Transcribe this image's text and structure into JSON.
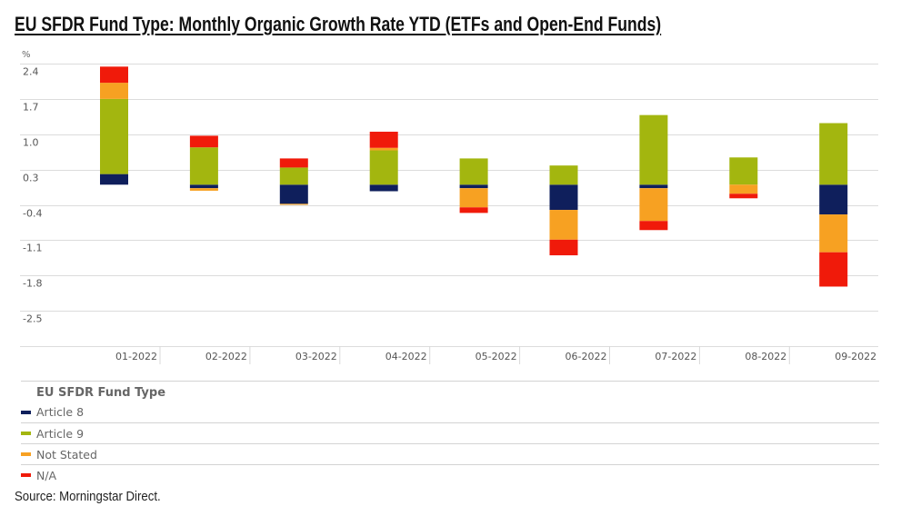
{
  "title": "EU SFDR Fund Type: Monthly Organic Growth Rate YTD (ETFs and Open-End Funds)",
  "source": "Source: Morningstar Direct.",
  "chart_data": {
    "type": "bar",
    "stacked": true,
    "title": "EU SFDR Fund Type: Monthly Organic Growth Rate YTD (ETFs and Open-End Funds)",
    "xlabel": "",
    "ylabel": "%",
    "ylim": [
      -3.2,
      2.4
    ],
    "yticks": [
      2.4,
      1.7,
      1.0,
      0.3,
      -0.4,
      -1.1,
      -1.8,
      -2.5,
      -3.2
    ],
    "ytick_labels": [
      "2.4",
      "1.7",
      "1.0",
      "0.3",
      "-0.4",
      "-1.1",
      "-1.8",
      "-2.5",
      ""
    ],
    "grid": true,
    "categories": [
      "01-2022",
      "02-2022",
      "03-2022",
      "04-2022",
      "05-2022",
      "06-2022",
      "07-2022",
      "08-2022",
      "09-2022"
    ],
    "series": [
      {
        "name": "Article 8",
        "color": "#0f1f5c",
        "values": [
          0.21,
          -0.07,
          -0.38,
          -0.13,
          -0.07,
          -0.5,
          -0.07,
          0.0,
          -0.59
        ]
      },
      {
        "name": "Article 9",
        "color": "#a3b60f",
        "values": [
          1.49,
          0.74,
          0.34,
          0.68,
          0.52,
          0.38,
          1.38,
          0.54,
          1.22
        ]
      },
      {
        "name": "Not Stated",
        "color": "#f7a122",
        "values": [
          0.32,
          -0.05,
          -0.02,
          0.05,
          -0.38,
          -0.59,
          -0.65,
          -0.18,
          -0.75
        ]
      },
      {
        "name": "N/A",
        "color": "#f01a0a",
        "values": [
          0.32,
          0.23,
          0.18,
          0.32,
          -0.11,
          -0.31,
          -0.18,
          -0.09,
          -0.68
        ]
      }
    ],
    "legend": {
      "title": "EU SFDR Fund Type",
      "position": "bottom-left"
    }
  }
}
